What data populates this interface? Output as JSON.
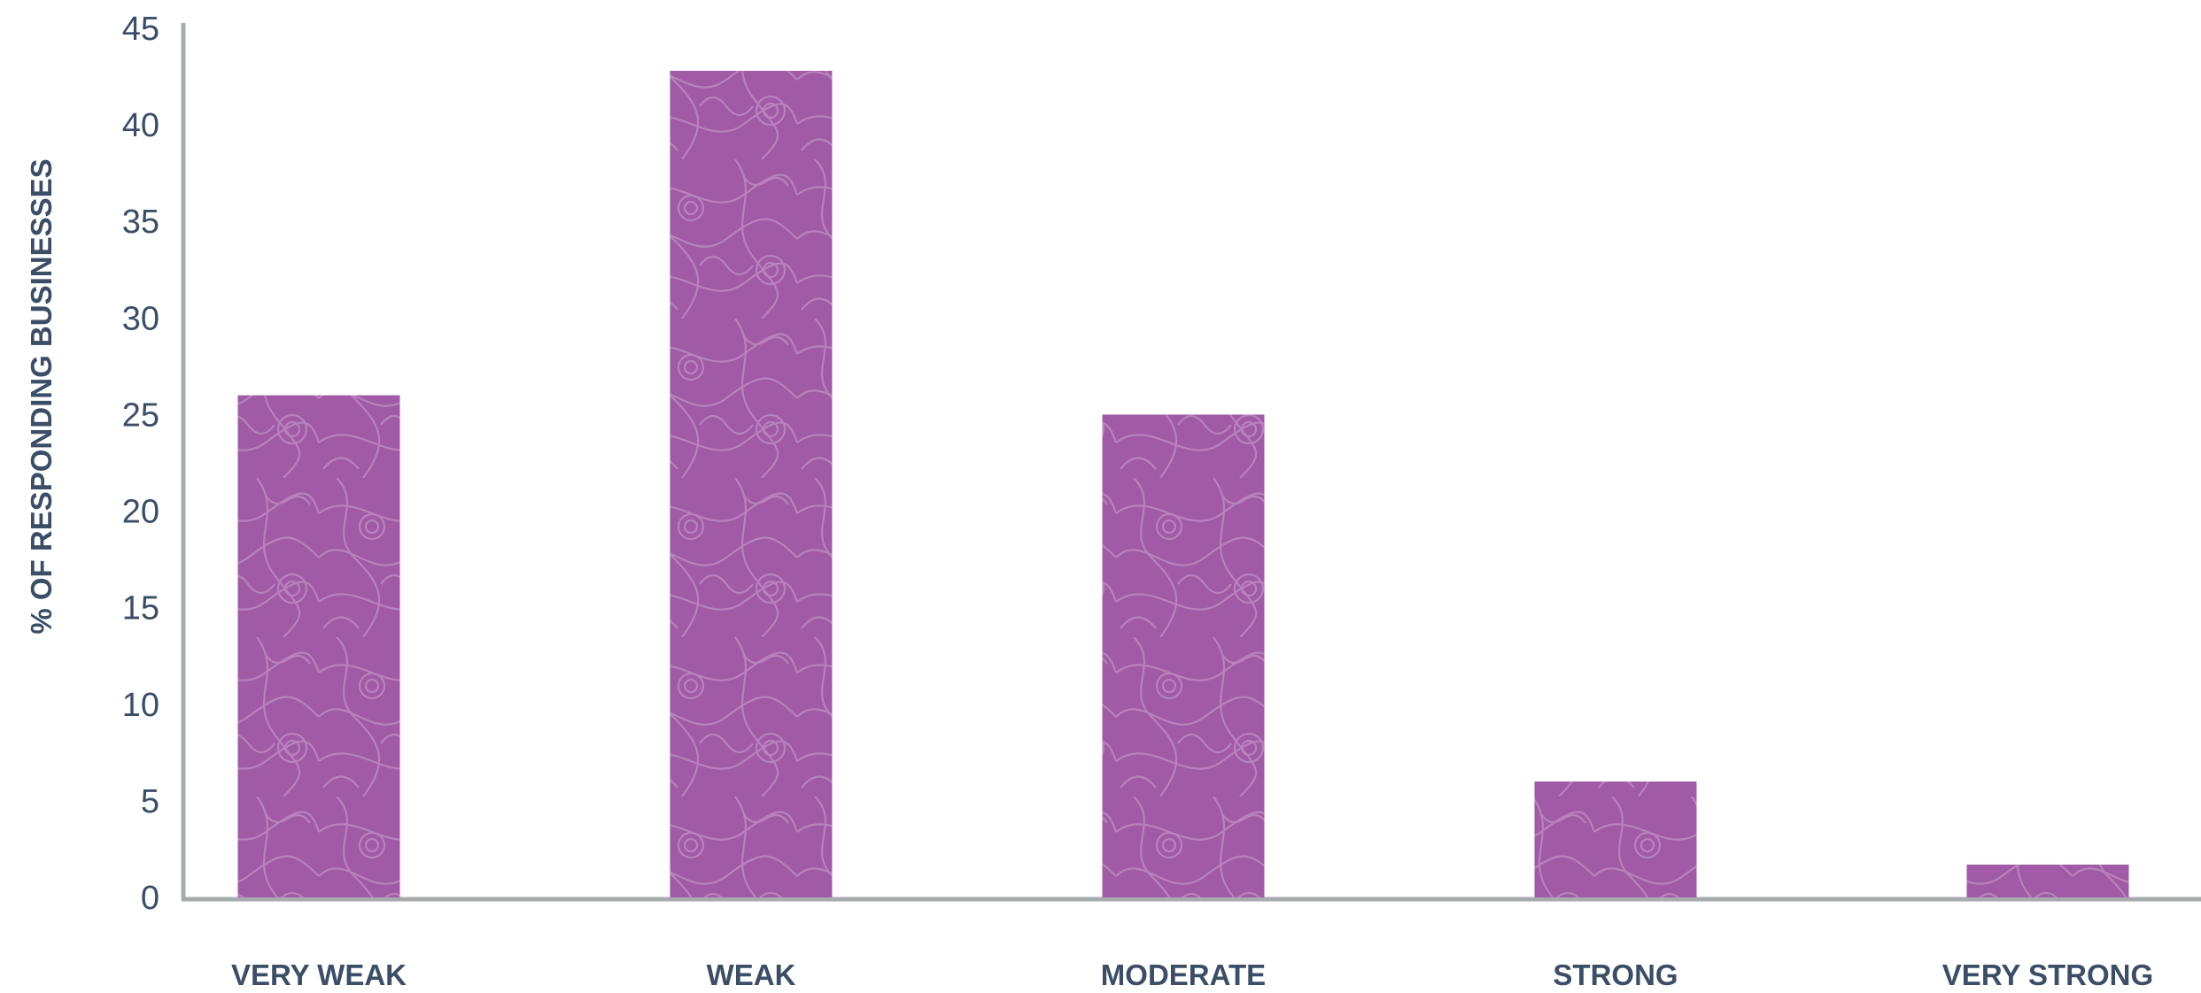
{
  "chart_data": {
    "type": "bar",
    "title": "",
    "xlabel": "",
    "ylabel": "% OF RESPONDING BUSINESSES",
    "categories": [
      "VERY WEAK",
      "WEAK",
      "MODERATE",
      "STRONG",
      "VERY STRONG"
    ],
    "values": [
      26,
      42.8,
      25,
      6,
      1.7
    ],
    "ylim": [
      0,
      45
    ],
    "yticks": [
      0,
      5,
      10,
      15,
      20,
      25,
      30,
      35,
      40,
      45
    ],
    "grid": false,
    "legend": "none",
    "bar_color": "#a05aa6",
    "pattern_color": "#c08ec4",
    "axis_color": "#a7abae",
    "text_color": "#3c4e66"
  }
}
